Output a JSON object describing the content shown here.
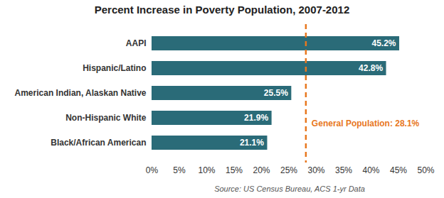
{
  "chart_data": {
    "type": "bar",
    "orientation": "horizontal",
    "title": "Percent Increase in Poverty Population, 2007-2012",
    "categories": [
      "AAPI",
      "Hispanic/Latino",
      "American Indian, Alaskan Native",
      "Non-Hispanic White",
      "Black/African American"
    ],
    "values": [
      45.2,
      42.8,
      25.5,
      21.9,
      21.1
    ],
    "value_labels": [
      "45.2%",
      "42.8%",
      "25.5%",
      "21.9%",
      "21.1%"
    ],
    "data_labels": true,
    "color": "#2a6b78",
    "xlim": [
      0,
      50
    ],
    "xticks": [
      {
        "value": 0,
        "label": "0%"
      },
      {
        "value": 5,
        "label": "5%"
      },
      {
        "value": 10,
        "label": "10%"
      },
      {
        "value": 15,
        "label": "15%"
      },
      {
        "value": 20,
        "label": "20%"
      },
      {
        "value": 25,
        "label": "25%"
      },
      {
        "value": 30,
        "label": "30%"
      },
      {
        "value": 35,
        "label": "35%"
      },
      {
        "value": 40,
        "label": "40%"
      },
      {
        "value": 45,
        "label": "45%"
      },
      {
        "value": 50,
        "label": "50%"
      }
    ],
    "grid": false,
    "annotations": [
      {
        "text": "General Population: 28.1%",
        "value": 28.1
      }
    ],
    "caption": "Source: US Census Bureau, ACS 1-yr Data"
  }
}
